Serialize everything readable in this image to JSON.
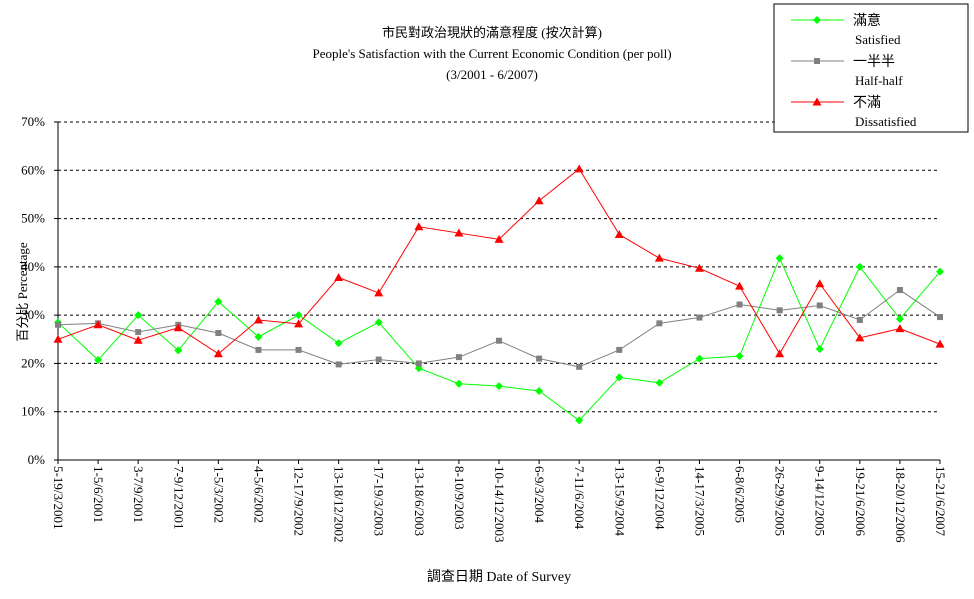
{
  "chart_data": {
    "type": "line",
    "title": "市民對政治現狀的滿意程度 (按次計算)",
    "subtitle": "People's Satisfaction with the Current Economic Condition  (per poll)",
    "period": "(3/2001 - 6/2007)",
    "xlabel": "調查日期 Date of Survey",
    "ylabel": "百分比 Percentage",
    "ylim": [
      0,
      70
    ],
    "yticks": [
      "0%",
      "10%",
      "20%",
      "30%",
      "40%",
      "50%",
      "60%",
      "70%"
    ],
    "grid": true,
    "legend_position": "top-right",
    "categories": [
      "5-19/3/2001",
      "1-5/6/2001",
      "3-7/9/2001",
      "7-9/12/2001",
      "1-5/3/2002",
      "4-5/6/2002",
      "12-17/9/2002",
      "13-18/12/2002",
      "17-19/3/2003",
      "13-18/6/2003",
      "8-10/9/2003",
      "10-14/12/2003",
      "6-9/3/2004",
      "7-11/6/2004",
      "13-15/9/2004",
      "6-9/12/2004",
      "14-17/3/2005",
      "6-8/6/2005",
      "26-29/9/2005",
      "9-14/12/2005",
      "19-21/6/2006",
      "18-20/12/2006",
      "15-21/6/2007"
    ],
    "series": [
      {
        "name": "滿意",
        "name_en": "Satisfied",
        "color": "#00ff00",
        "marker": "diamond",
        "values": [
          28.5,
          20.7,
          30.0,
          22.7,
          32.8,
          25.5,
          30.0,
          24.2,
          28.5,
          19.0,
          15.8,
          15.3,
          14.3,
          8.2,
          17.1,
          16.0,
          21.0,
          21.5,
          41.8,
          23.0,
          40.0,
          29.2,
          39.0
        ]
      },
      {
        "name": "一半半",
        "name_en": "Half-half",
        "color": "#808080",
        "marker": "square",
        "values": [
          28.0,
          28.3,
          26.5,
          28.0,
          26.3,
          22.8,
          22.8,
          19.8,
          20.8,
          20.0,
          21.3,
          24.7,
          21.0,
          19.3,
          22.8,
          28.3,
          29.5,
          32.2,
          31.0,
          32.0,
          29.0,
          35.2,
          29.6
        ]
      },
      {
        "name": "不滿",
        "name_en": "Dissatisfied",
        "color": "#ff0000",
        "marker": "triangle",
        "values": [
          25.0,
          28.0,
          24.8,
          27.4,
          22.0,
          29.0,
          28.2,
          37.8,
          34.6,
          48.3,
          47.0,
          45.7,
          53.7,
          60.3,
          46.7,
          41.8,
          39.7,
          36.0,
          22.0,
          36.5,
          25.3,
          27.2,
          24.0
        ]
      }
    ]
  }
}
